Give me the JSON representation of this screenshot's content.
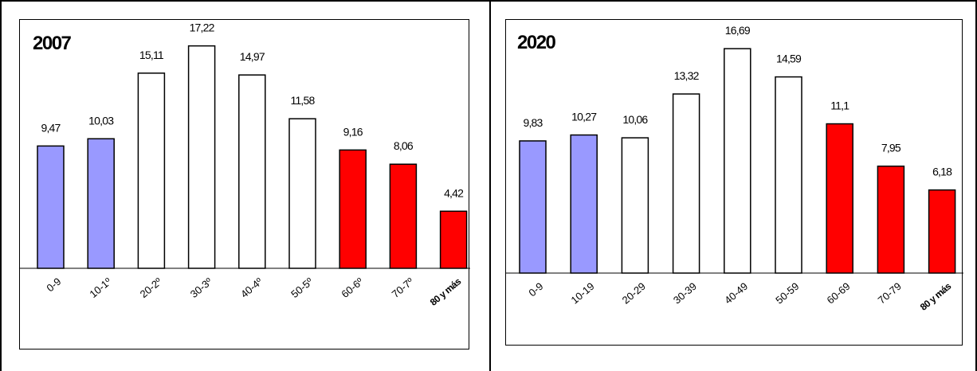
{
  "chart_data": [
    {
      "type": "bar",
      "title": "2007",
      "categories": [
        "0-9",
        "10-1º",
        "20-2º",
        "30-3º",
        "40-4º",
        "50-5º",
        "60-6º",
        "70-7º",
        "80 y más"
      ],
      "values": [
        9.47,
        10.03,
        15.11,
        17.22,
        14.97,
        11.58,
        9.16,
        8.06,
        4.42
      ],
      "value_labels": [
        "9,47",
        "10,03",
        "15,11",
        "17,22",
        "14,97",
        "11,58",
        "9,16",
        "8,06",
        "4,42"
      ],
      "bar_colors": [
        "#9999ff",
        "#9999ff",
        "#ffffff",
        "#ffffff",
        "#ffffff",
        "#ffffff",
        "#ff0000",
        "#ff0000",
        "#ff0000"
      ],
      "ylim": [
        0,
        18
      ],
      "grid": false,
      "legend": "none"
    },
    {
      "type": "bar",
      "title": "2020",
      "categories": [
        "0-9",
        "10-19",
        "20-29",
        "30-39",
        "40-49",
        "50-59",
        "60-69",
        "70-79",
        "80 y más"
      ],
      "values": [
        9.83,
        10.27,
        10.06,
        13.32,
        16.69,
        14.59,
        11.1,
        7.95,
        6.18
      ],
      "value_labels": [
        "9,83",
        "10,27",
        "10,06",
        "13,32",
        "16,69",
        "14,59",
        "11,1",
        "7,95",
        "6,18"
      ],
      "bar_colors": [
        "#9999ff",
        "#9999ff",
        "#ffffff",
        "#ffffff",
        "#ffffff",
        "#ffffff",
        "#ff0000",
        "#ff0000",
        "#ff0000"
      ],
      "ylim": [
        0,
        18
      ],
      "grid": false,
      "legend": "none"
    }
  ]
}
